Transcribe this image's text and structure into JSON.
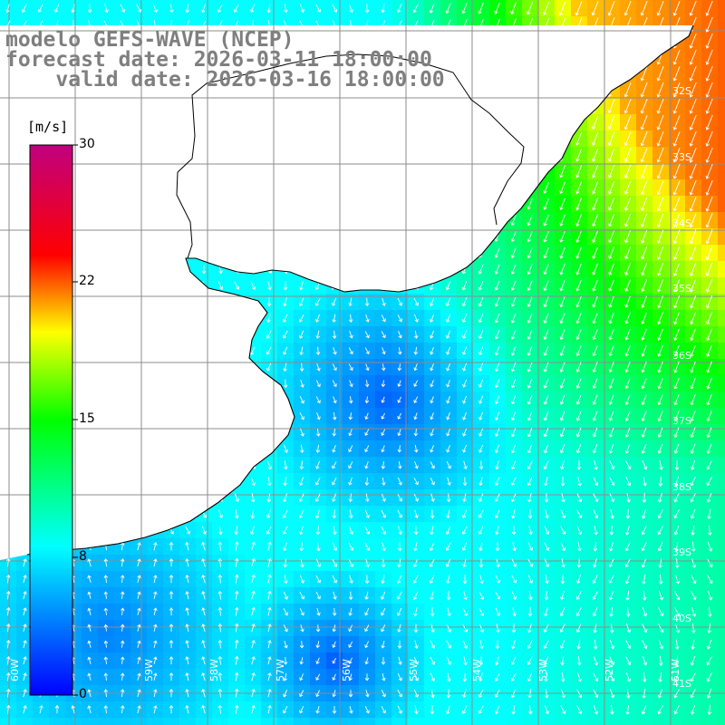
{
  "titles": {
    "line1": "modelo GEFS-WAVE (NCEP)",
    "line2": "forecast date: 2026-03-11 18:00:00",
    "line3": "    valid date: 2026-03-16 18:00:00"
  },
  "colorbar": {
    "unit": "[m/s]",
    "ticks": [
      "30",
      "22",
      "15",
      "8",
      "0"
    ],
    "colors": [
      "#0000ff",
      "#00ffff",
      "#00ff00",
      "#ffff00",
      "#ff0000",
      "#c0007f"
    ]
  },
  "grid": {
    "lat_labels": [
      "32S",
      "33S",
      "34S",
      "35S",
      "36S",
      "37S",
      "38S",
      "39S",
      "40S",
      "41S"
    ],
    "lon_labels": [
      "60W",
      "59W",
      "58W",
      "57W",
      "56W",
      "55W",
      "54W",
      "53W",
      "52W",
      "51W"
    ]
  },
  "colors": {
    "land": "#ffffff",
    "grid_line": "#8c8c8c",
    "coastline": "#000000",
    "arrow": "#ffffff",
    "title": "#7f7f7f"
  }
}
